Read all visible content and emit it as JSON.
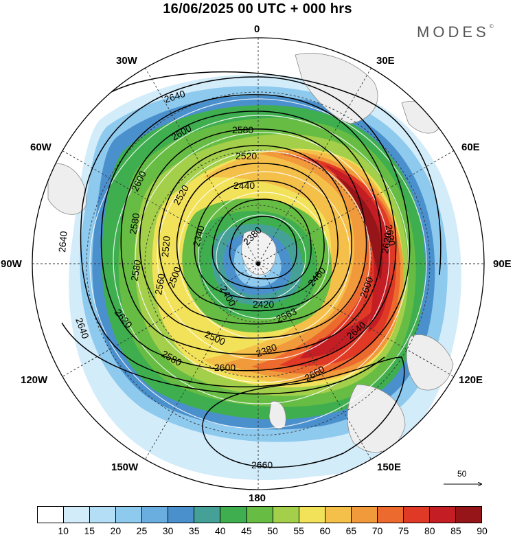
{
  "title": "16/06/2025  00 UTC  + 000 hrs",
  "brand": {
    "name": "MODES",
    "mark": "©"
  },
  "map": {
    "projection": "south polar stereographic",
    "longitude_labels": [
      {
        "key": "n",
        "text": "0"
      },
      {
        "key": "nne",
        "text": "30E"
      },
      {
        "key": "ene",
        "text": "60E"
      },
      {
        "key": "e",
        "text": "90E"
      },
      {
        "key": "ese",
        "text": "120E"
      },
      {
        "key": "sse",
        "text": "150E"
      },
      {
        "key": "s",
        "text": "180"
      },
      {
        "key": "ssw",
        "text": "150W"
      },
      {
        "key": "wsw",
        "text": "120W"
      },
      {
        "key": "w",
        "text": "90W"
      },
      {
        "key": "wnw",
        "text": "60W"
      },
      {
        "key": "nnw",
        "text": "30W"
      }
    ],
    "contour_labels": [
      "2640",
      "2580",
      "2600",
      "2520",
      "2440",
      "2600",
      "2580",
      "2520",
      "2340",
      "2380",
      "2400",
      "2640",
      "2580",
      "2520",
      "2560",
      "2620",
      "2640",
      "2620",
      "2600",
      "2500",
      "2420",
      "2580",
      "2500",
      "2563",
      "2460",
      "2640",
      "2600",
      "2620",
      "2660",
      "2660",
      "2380"
    ],
    "vector_reference": {
      "value": "50"
    }
  },
  "colorbar": {
    "ticks": [
      "10",
      "15",
      "20",
      "25",
      "30",
      "35",
      "40",
      "45",
      "50",
      "55",
      "60",
      "65",
      "70",
      "75",
      "80",
      "85",
      "90"
    ],
    "colors": [
      "#ffffff",
      "#d2ecfa",
      "#b4def6",
      "#8ec9ee",
      "#6aaee0",
      "#4a90cc",
      "#45a197",
      "#3fae4f",
      "#67bd44",
      "#a3cf4a",
      "#f2e25a",
      "#f5c04a",
      "#f19a3b",
      "#ec6a2e",
      "#e03a27",
      "#c41e24",
      "#961519"
    ]
  }
}
